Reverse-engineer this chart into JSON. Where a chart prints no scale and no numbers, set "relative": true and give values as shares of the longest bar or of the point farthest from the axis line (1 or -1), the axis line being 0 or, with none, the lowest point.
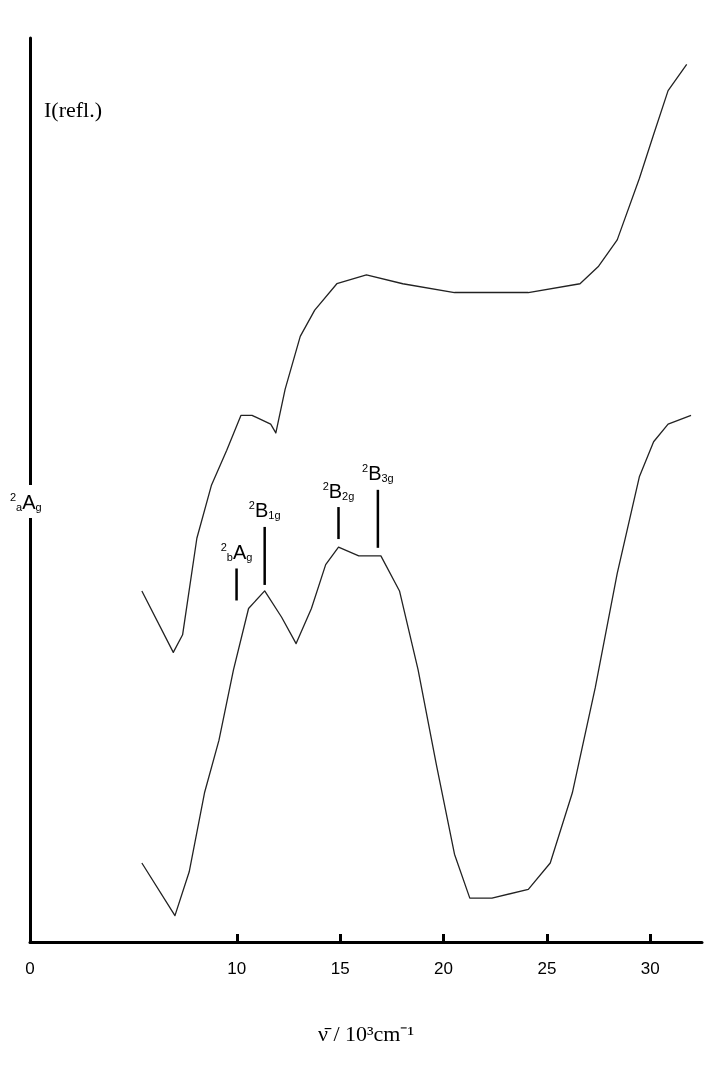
{
  "chart_data": {
    "type": "line",
    "relative": true,
    "xlabel": "ν̄ / 10³cm⁻¹",
    "ylabel": "I(refl.)",
    "xlim": [
      0,
      32.5
    ],
    "xticks": [
      0,
      10,
      15,
      20,
      25,
      30
    ],
    "series": [
      {
        "color": "#222222",
        "x": [
          5.41,
          6.93,
          7.38,
          8.07,
          8.77,
          9.51,
          10.2,
          10.74,
          11.64,
          11.89,
          12.34,
          13.07,
          13.77,
          14.84,
          16.27,
          18.03,
          20.53,
          24.1,
          26.6,
          27.5,
          28.4,
          29.47,
          30.16,
          30.86,
          31.76
        ],
        "values": [
          0.4,
          0.33,
          0.35,
          0.46,
          0.52,
          0.56,
          0.6,
          0.6,
          0.59,
          0.58,
          0.63,
          0.69,
          0.72,
          0.75,
          0.76,
          0.75,
          0.74,
          0.74,
          0.75,
          0.77,
          0.8,
          0.87,
          0.92,
          0.97,
          1
        ]
      },
      {
        "color": "#222222",
        "x": [
          5.41,
          7.01,
          7.7,
          8.44,
          9.14,
          9.84,
          10.57,
          11.35,
          12.17,
          12.87,
          13.61,
          14.3,
          14.92,
          15.9,
          16.97,
          17.87,
          18.77,
          19.67,
          20.53,
          21.27,
          22.34,
          24.1,
          25.16,
          26.23,
          27.34,
          28.4,
          29.47,
          30.16,
          30.86,
          31.97
        ],
        "values": [
          0.09,
          0.03,
          0.08,
          0.17,
          0.23,
          0.31,
          0.38,
          0.4,
          0.37,
          0.34,
          0.38,
          0.43,
          0.45,
          0.44,
          0.44,
          0.4,
          0.31,
          0.2,
          0.1,
          0.05,
          0.05,
          0.06,
          0.09,
          0.17,
          0.29,
          0.42,
          0.53,
          0.57,
          0.59,
          0.6
        ]
      }
    ],
    "annotations": [
      "$^{2}$$_{a}$A$_{g}$",
      "$^{2}$$_{b}$A$_{g}$",
      "$^{2}$B$_{1g}$",
      "$^{2}$B$_{2g}$",
      "$^{2}$B$_{3g}$"
    ],
    "grid": false,
    "marker": "none",
    "line_style": "solid"
  }
}
